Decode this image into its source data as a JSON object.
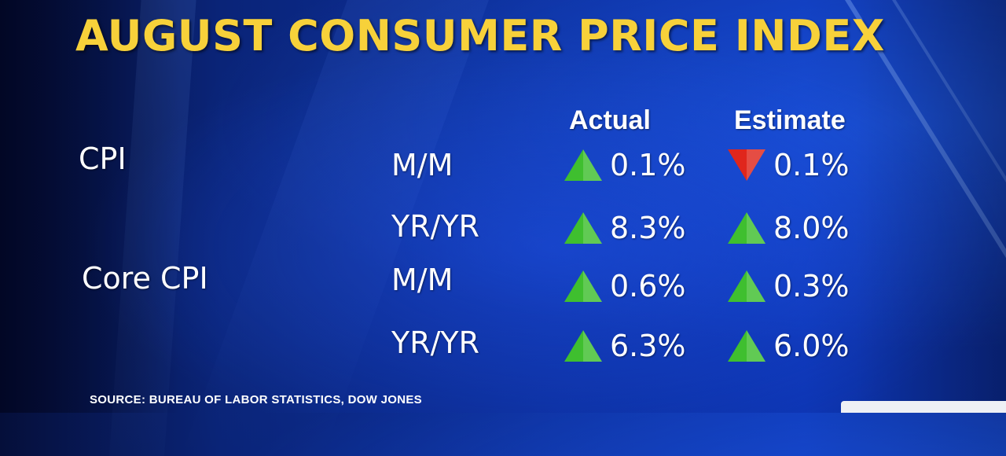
{
  "title": "AUGUST CONSUMER PRICE INDEX",
  "columns": {
    "actual": "Actual",
    "estimate": "Estimate"
  },
  "rows": [
    {
      "metric": "CPI",
      "period": "M/M",
      "actual": {
        "value": "0.1%",
        "direction": "up",
        "color": "#3fbf2f"
      },
      "estimate": {
        "value": "0.1%",
        "direction": "down",
        "color": "#e0261c"
      }
    },
    {
      "metric": "",
      "period": "YR/YR",
      "actual": {
        "value": "8.3%",
        "direction": "up",
        "color": "#3fbf2f"
      },
      "estimate": {
        "value": "8.0%",
        "direction": "up",
        "color": "#3fbf2f"
      }
    },
    {
      "metric": "Core CPI",
      "period": "M/M",
      "actual": {
        "value": "0.6%",
        "direction": "up",
        "color": "#3fbf2f"
      },
      "estimate": {
        "value": "0.3%",
        "direction": "up",
        "color": "#3fbf2f"
      }
    },
    {
      "metric": "",
      "period": "YR/YR",
      "actual": {
        "value": "6.3%",
        "direction": "up",
        "color": "#3fbf2f"
      },
      "estimate": {
        "value": "6.0%",
        "direction": "up",
        "color": "#3fbf2f"
      }
    }
  ],
  "source": "SOURCE: BUREAU OF LABOR STATISTICS, DOW JONES",
  "colors": {
    "title": "#f7d13a",
    "up": "#3fbf2f",
    "down": "#e0261c"
  }
}
